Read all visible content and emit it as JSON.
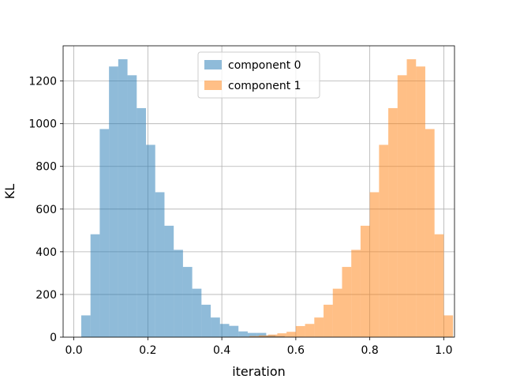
{
  "chart_data": {
    "type": "histogram",
    "title": "",
    "xlabel": "iteration",
    "ylabel": "KL",
    "xlim": [
      -0.029,
      1.029
    ],
    "ylim": [
      0,
      1365
    ],
    "x_ticks": [
      0.0,
      0.2,
      0.4,
      0.6,
      0.8,
      1.0
    ],
    "x_tick_labels": [
      "0.0",
      "0.2",
      "0.4",
      "0.6",
      "0.8",
      "1.0"
    ],
    "y_ticks": [
      0,
      200,
      400,
      600,
      800,
      1000,
      1200
    ],
    "y_tick_labels": [
      "0",
      "200",
      "400",
      "600",
      "800",
      "1000",
      "1200"
    ],
    "grid": true,
    "legend_position": "top-center",
    "bin_width": 0.025,
    "series": [
      {
        "name": "component 0",
        "color": "#1f77b4",
        "alpha": 0.5,
        "bin_start": 0.02,
        "counts": [
          102,
          482,
          975,
          1268,
          1302,
          1227,
          1073,
          901,
          679,
          522,
          409,
          329,
          227,
          152,
          92,
          62,
          53,
          27,
          20,
          20,
          8,
          5,
          2,
          2,
          1,
          1,
          1,
          1,
          0,
          0,
          0,
          0,
          0,
          0,
          0,
          0,
          0,
          0
        ]
      },
      {
        "name": "component 1",
        "color": "#ff7f0e",
        "alpha": 0.5,
        "bin_start": 0.025,
        "counts": [
          0,
          0,
          0,
          0,
          0,
          0,
          0,
          0,
          0,
          0,
          0,
          0,
          0,
          0,
          0,
          1,
          1,
          2,
          5,
          8,
          12,
          18,
          25,
          52,
          62,
          92,
          152,
          227,
          329,
          409,
          522,
          679,
          901,
          1073,
          1227,
          1302,
          1268,
          975,
          482,
          102
        ]
      }
    ]
  }
}
